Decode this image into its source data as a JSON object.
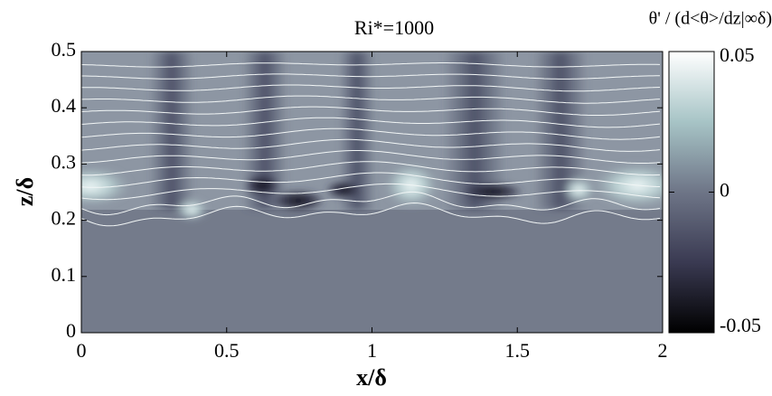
{
  "chart_data": {
    "type": "field",
    "title": "Ri*=1000",
    "xlabel": "x/δ",
    "ylabel": "z/δ",
    "xlim": [
      0,
      2
    ],
    "xticks": [
      0,
      0.5,
      1,
      1.5,
      2
    ],
    "ylim": [
      0,
      0.5
    ],
    "yticks": [
      0,
      0.1,
      0.2,
      0.3,
      0.4,
      0.5
    ],
    "colorbar": {
      "label": "θ' / (d<θ>/dz|∞δ)",
      "lim": [
        -0.05,
        0.05
      ],
      "ticks": [
        -0.05,
        0,
        0.05
      ]
    }
  }
}
